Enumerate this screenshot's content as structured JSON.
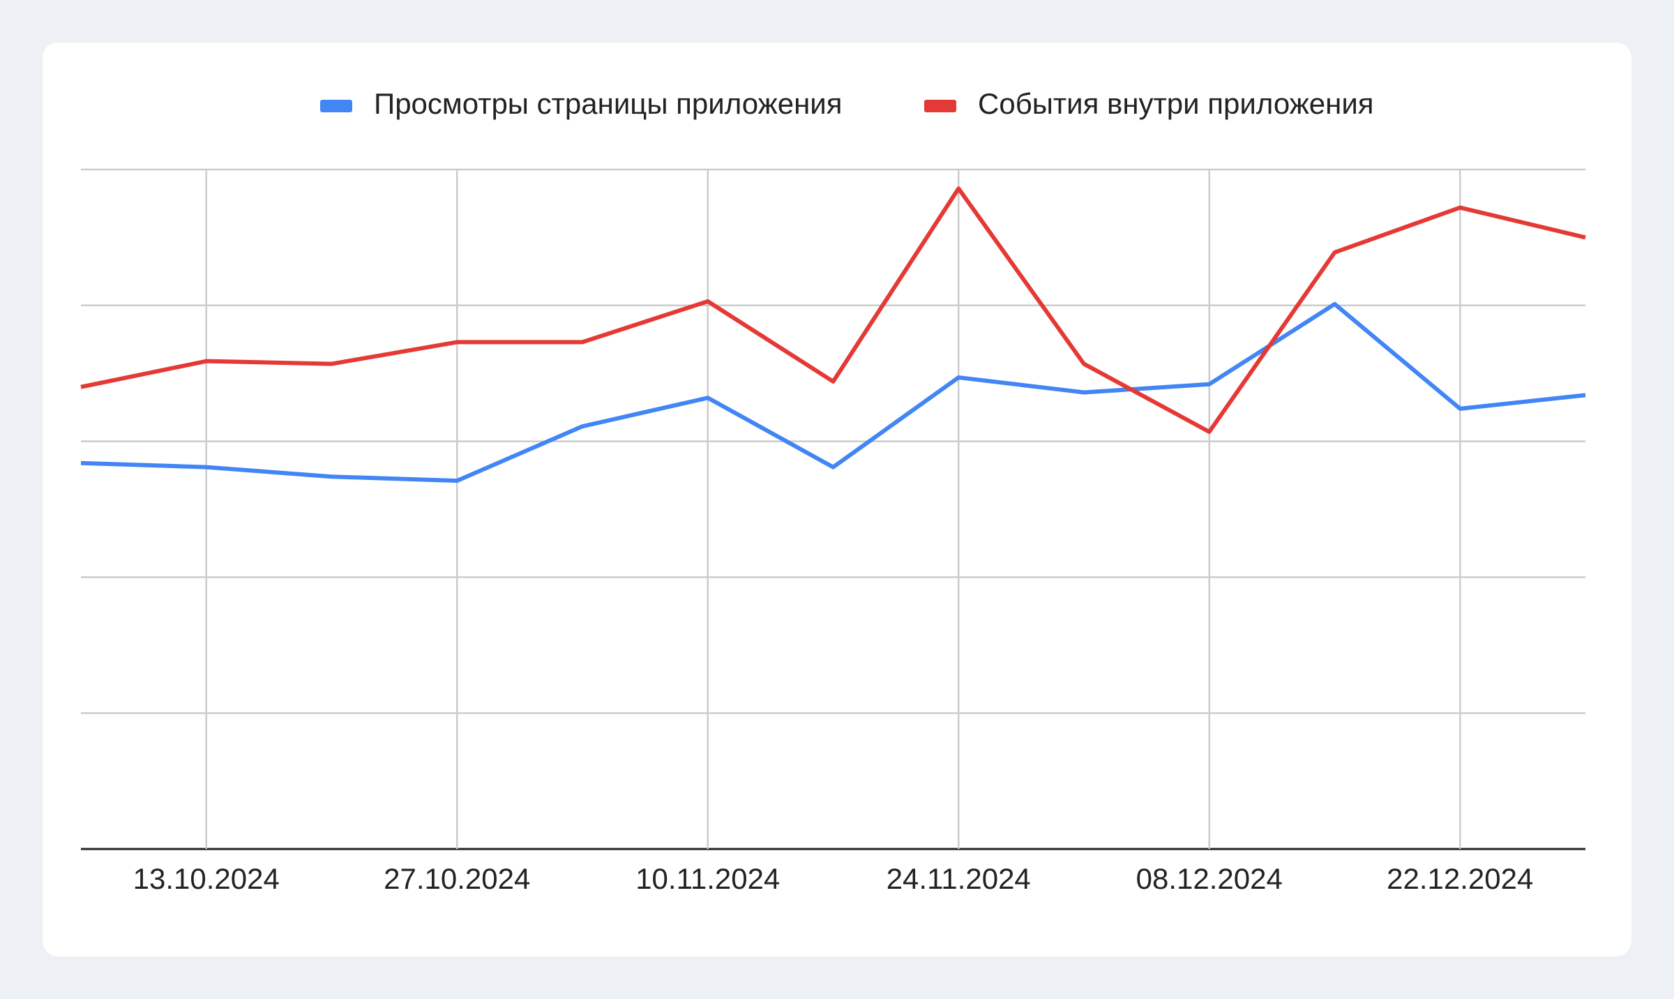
{
  "chart_data": {
    "type": "line",
    "categories": [
      null,
      "13.10.2024",
      null,
      "27.10.2024",
      null,
      "10.11.2024",
      null,
      "24.11.2024",
      null,
      "08.12.2024",
      null,
      "22.12.2024",
      null
    ],
    "series": [
      {
        "name": "Просмотры страницы приложения",
        "color": "#4285f4",
        "values": [
          2.84,
          2.81,
          2.74,
          2.71,
          3.11,
          3.32,
          2.81,
          3.47,
          3.36,
          3.42,
          4.01,
          3.24,
          3.34
        ]
      },
      {
        "name": "События внутри приложения",
        "color": "#e53935",
        "values": [
          3.4,
          3.59,
          3.57,
          3.73,
          3.73,
          4.03,
          3.44,
          4.86,
          3.57,
          3.07,
          4.39,
          4.72,
          4.5
        ]
      }
    ],
    "ylim": [
      0,
      5
    ],
    "yticks": [
      0,
      1,
      2,
      3,
      4,
      5
    ],
    "grid": true
  }
}
